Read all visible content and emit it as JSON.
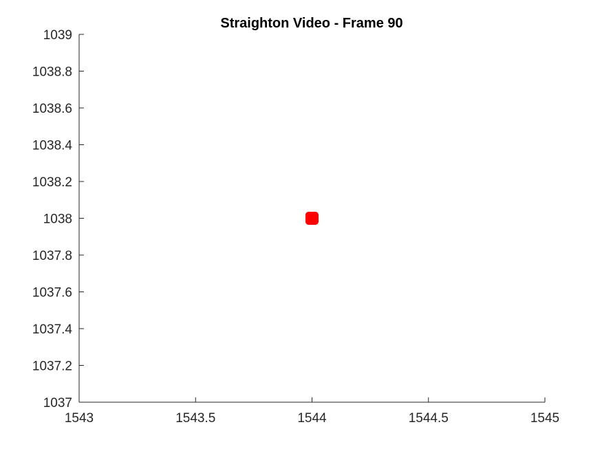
{
  "chart_data": {
    "type": "scatter",
    "title": "Straighton Video - Frame 90",
    "xlabel": "",
    "ylabel": "",
    "xlim": [
      1543,
      1545
    ],
    "ylim": [
      1037,
      1039
    ],
    "xticks": [
      1543,
      1543.5,
      1544,
      1544.5,
      1545
    ],
    "xtick_labels": [
      "1543",
      "1543.5",
      "1544",
      "1544.5",
      "1545"
    ],
    "yticks": [
      1037,
      1037.2,
      1037.4,
      1037.6,
      1037.8,
      1038,
      1038.2,
      1038.4,
      1038.6,
      1038.8,
      1039
    ],
    "ytick_labels": [
      "1037",
      "1037.2",
      "1037.4",
      "1037.6",
      "1037.8",
      "1038",
      "1038.2",
      "1038.4",
      "1038.6",
      "1038.8",
      "1039"
    ],
    "grid": false,
    "legend": "none",
    "series": [
      {
        "color": "#ff0000",
        "marker": "square",
        "points": [
          {
            "x": 1544,
            "y": 1038
          }
        ]
      }
    ]
  }
}
